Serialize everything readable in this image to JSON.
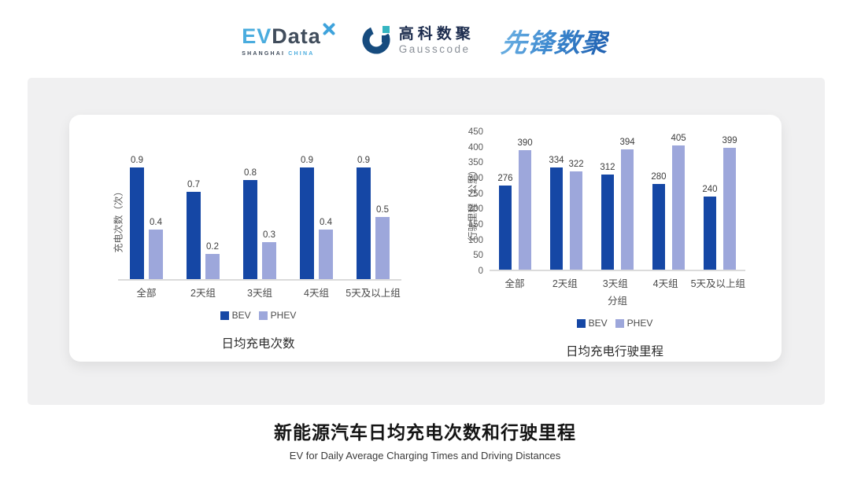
{
  "header": {
    "evdata": {
      "ev": "EV",
      "data": "Data",
      "sub_left": "SHANGHAI",
      "sub_right": "CHINA"
    },
    "gausscode": {
      "cn": "高科数聚",
      "en": "Gausscode"
    },
    "pioneer": {
      "text": "先锋数聚"
    }
  },
  "colors": {
    "bev": "#1547A5",
    "phev": "#9DA7DB"
  },
  "chart_data": [
    {
      "type": "bar",
      "title": "日均充电次数",
      "ylabel": "充电次数（次）",
      "xlabel": "",
      "categories": [
        "全部",
        "2天组",
        "3天组",
        "4天组",
        "5天及以上组"
      ],
      "series": [
        {
          "name": "BEV",
          "values": [
            0.9,
            0.7,
            0.8,
            0.9,
            0.9
          ]
        },
        {
          "name": "PHEV",
          "values": [
            0.4,
            0.2,
            0.3,
            0.4,
            0.5
          ]
        }
      ],
      "ylim": [
        0,
        1.0
      ],
      "yticks": [],
      "grid": false,
      "legend_position": "bottom",
      "value_labels": true
    },
    {
      "type": "bar",
      "title": "日均充电行驶里程",
      "ylabel": "行驶里程（公里）",
      "xlabel": "分组",
      "categories": [
        "全部",
        "2天组",
        "3天组",
        "4天组",
        "5天及以上组"
      ],
      "series": [
        {
          "name": "BEV",
          "values": [
            276,
            334,
            312,
            280,
            240
          ]
        },
        {
          "name": "PHEV",
          "values": [
            390,
            322,
            394,
            405,
            399
          ]
        }
      ],
      "ylim": [
        0,
        450
      ],
      "yticks": [
        0,
        50,
        100,
        150,
        200,
        250,
        300,
        350,
        400,
        450
      ],
      "grid": false,
      "legend_position": "bottom",
      "value_labels": true
    }
  ],
  "footer": {
    "title": "新能源汽车日均充电次数和行驶里程",
    "subtitle": "EV for Daily Average Charging Times and Driving Distances"
  }
}
